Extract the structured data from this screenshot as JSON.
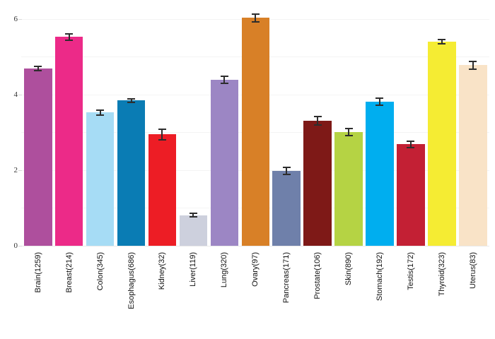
{
  "chart_data": {
    "type": "bar",
    "title": "",
    "xlabel": "",
    "ylabel": "",
    "categories": [
      "Brain(1259)",
      "Breast(214)",
      "Colon(345)",
      "Esophagus(686)",
      "Kidney(32)",
      "Liver(119)",
      "Lung(320)",
      "Ovary(97)",
      "Pancreas(171)",
      "Prostate(106)",
      "Skin(890)",
      "Stomach(192)",
      "Testis(172)",
      "Thyroid(323)",
      "Uterus(83)"
    ],
    "values": [
      4.68,
      5.52,
      3.52,
      3.84,
      2.94,
      0.81,
      4.39,
      6.02,
      1.98,
      3.3,
      3.01,
      3.81,
      2.68,
      5.39,
      4.77
    ],
    "errors": [
      0.06,
      0.08,
      0.07,
      0.05,
      0.14,
      0.05,
      0.09,
      0.11,
      0.1,
      0.11,
      0.09,
      0.09,
      0.08,
      0.06,
      0.11
    ],
    "colors": [
      "#ae4f9d",
      "#ec2a88",
      "#a6dcf5",
      "#0a7cb4",
      "#ed1d25",
      "#cdd0dd",
      "#9c86c4",
      "#d88027",
      "#6f80aa",
      "#7e1917",
      "#b5d344",
      "#00aeef",
      "#c32034",
      "#f5ec33",
      "#f9e3c7"
    ],
    "error_bar_color": "#2d2d2d",
    "background_color": "#ffffff",
    "ylim": [
      0,
      6.5
    ],
    "y_gridline_values": [
      0,
      1,
      2,
      3,
      4,
      5,
      6
    ],
    "y_ticks": [
      {
        "value": 0,
        "label": "0"
      },
      {
        "value": 2,
        "label": "2"
      },
      {
        "value": 4,
        "label": "4"
      },
      {
        "value": 6,
        "label": "6"
      }
    ],
    "grid": "horizontal light-gray lines at every integer",
    "legend": "none",
    "x_label_orientation": "vertical (reads bottom-to-top)"
  }
}
